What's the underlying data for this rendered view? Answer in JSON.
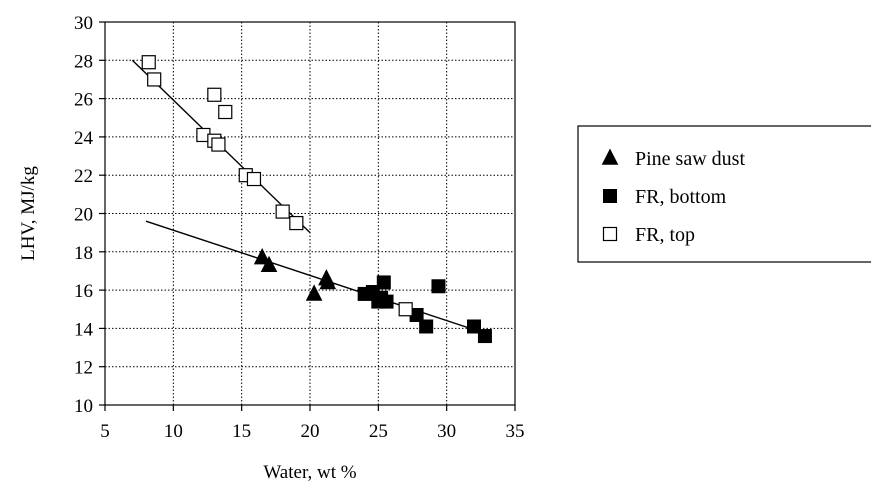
{
  "chart_data": {
    "type": "scatter",
    "xlabel": "Water, wt %",
    "ylabel": "LHV, MJ/kg",
    "xlim": [
      5,
      35
    ],
    "ylim": [
      10,
      30
    ],
    "x_ticks": [
      5,
      10,
      15,
      20,
      25,
      30,
      35
    ],
    "y_ticks": [
      10,
      12,
      14,
      16,
      18,
      20,
      22,
      24,
      26,
      28,
      30
    ],
    "grid": true,
    "legend_position": "right",
    "series": [
      {
        "name": "Pine saw dust",
        "marker": "filled-triangle",
        "points": [
          [
            16.5,
            17.7
          ],
          [
            17.0,
            17.3
          ],
          [
            20.3,
            15.8
          ],
          [
            21.2,
            16.6
          ],
          [
            21.3,
            16.4
          ]
        ]
      },
      {
        "name": "FR, bottom",
        "marker": "filled-square",
        "points": [
          [
            24.0,
            15.8
          ],
          [
            24.6,
            15.9
          ],
          [
            25.0,
            15.4
          ],
          [
            25.2,
            15.6
          ],
          [
            25.4,
            16.4
          ],
          [
            25.6,
            15.4
          ],
          [
            27.8,
            14.7
          ],
          [
            28.5,
            14.1
          ],
          [
            29.4,
            16.2
          ],
          [
            32.0,
            14.1
          ],
          [
            32.8,
            13.6
          ]
        ]
      },
      {
        "name": "FR, top",
        "marker": "open-square",
        "points": [
          [
            8.2,
            27.9
          ],
          [
            8.6,
            27.0
          ],
          [
            12.2,
            24.1
          ],
          [
            13.0,
            26.2
          ],
          [
            13.0,
            23.8
          ],
          [
            13.3,
            23.6
          ],
          [
            13.8,
            25.3
          ],
          [
            15.3,
            22.0
          ],
          [
            15.9,
            21.8
          ],
          [
            18.0,
            20.1
          ],
          [
            19.0,
            19.5
          ],
          [
            27.0,
            15.0
          ]
        ]
      }
    ],
    "trendlines": [
      {
        "from": [
          7.0,
          28.0
        ],
        "to": [
          20.0,
          19.0
        ]
      },
      {
        "from": [
          8.0,
          19.6
        ],
        "to": [
          33.0,
          13.7
        ]
      }
    ]
  }
}
